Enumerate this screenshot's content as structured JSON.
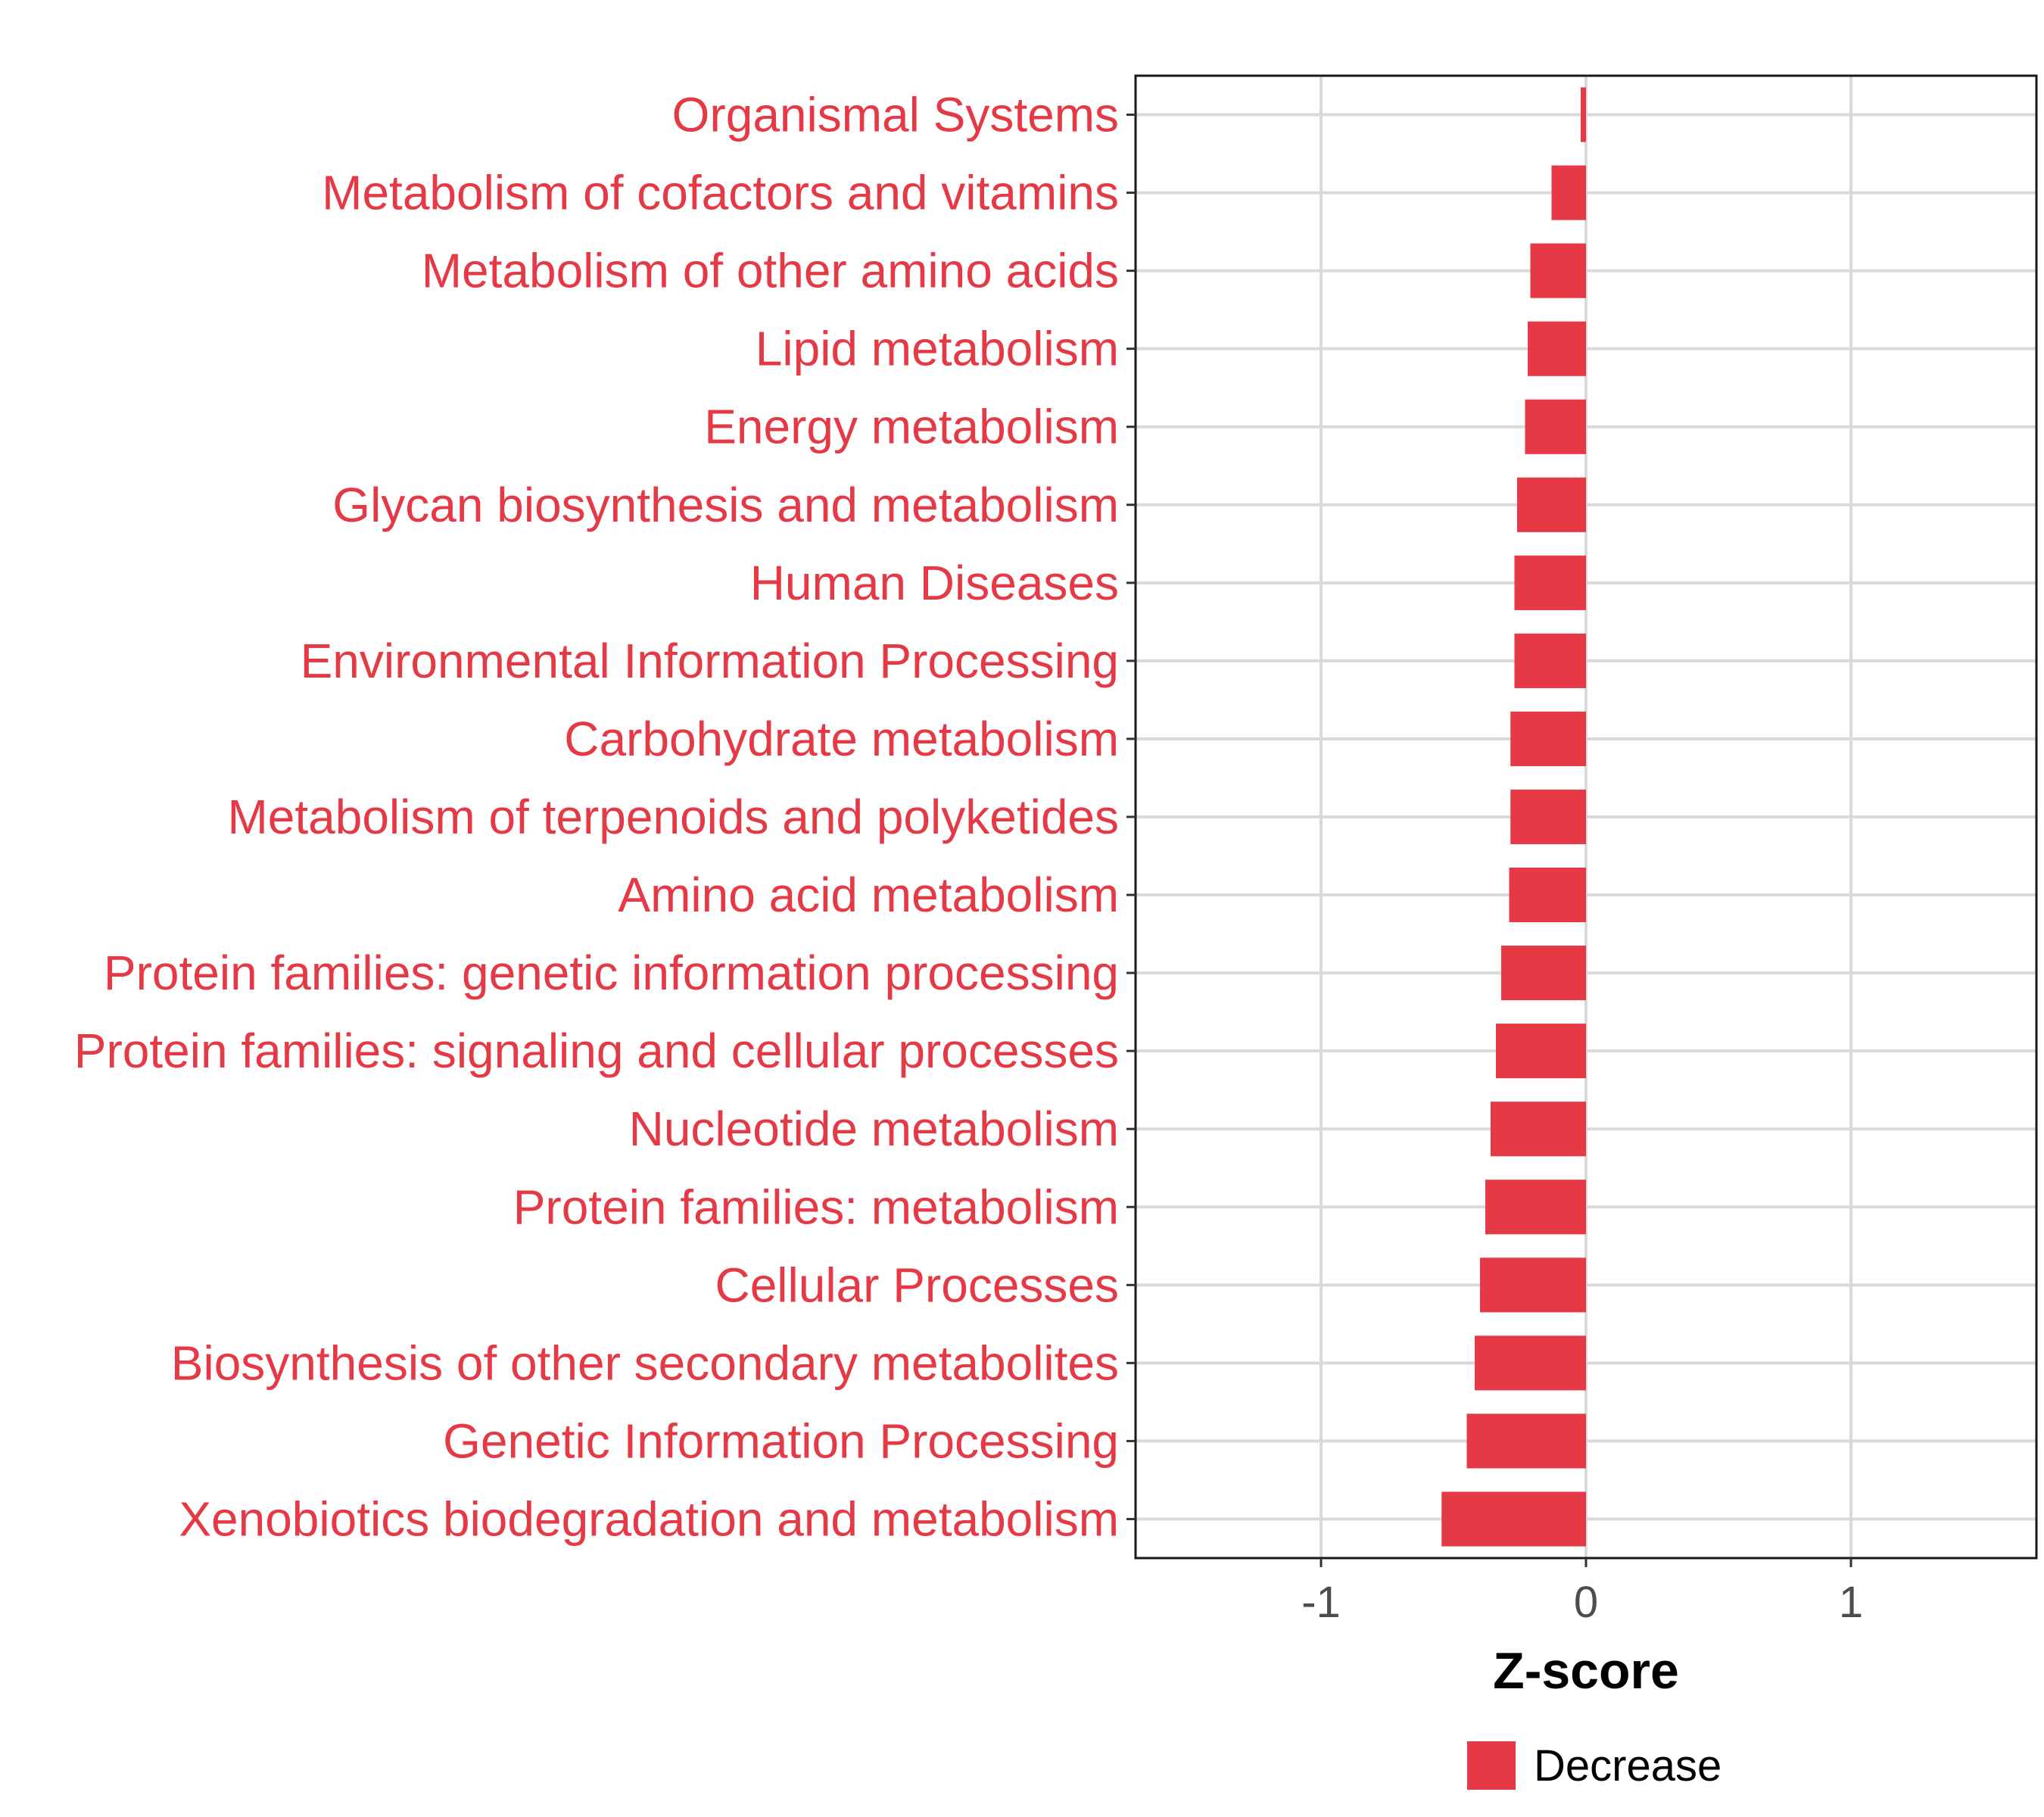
{
  "chart_data": {
    "type": "bar",
    "orientation": "horizontal",
    "categories": [
      "Organismal Systems",
      "Metabolism of cofactors and vitamins",
      "Metabolism of other amino acids",
      "Lipid metabolism",
      "Energy metabolism",
      "Glycan biosynthesis and metabolism",
      "Human Diseases",
      "Environmental Information Processing",
      "Carbohydrate metabolism",
      "Metabolism of terpenoids and polyketides",
      "Amino acid metabolism",
      "Protein families: genetic information processing",
      "Protein families: signaling and cellular processes",
      "Nucleotide metabolism",
      "Protein families: metabolism",
      "Cellular Processes",
      "Biosynthesis of other secondary metabolites",
      "Genetic Information Processing",
      "Xenobiotics biodegradation and metabolism"
    ],
    "values": [
      -0.02,
      -0.13,
      -0.21,
      -0.22,
      -0.23,
      -0.26,
      -0.27,
      -0.27,
      -0.285,
      -0.285,
      -0.29,
      -0.32,
      -0.34,
      -0.36,
      -0.38,
      -0.4,
      -0.42,
      -0.45,
      -0.545
    ],
    "xlabel": "Z-score",
    "ylabel": "",
    "xlim": [
      -1.7,
      1.7
    ],
    "xticks": [
      -1,
      0,
      1
    ],
    "xtick_labels": [
      "-1",
      "0",
      "1"
    ],
    "grid": true,
    "legend": {
      "position": "bottom",
      "entries": [
        {
          "label": "Decrease",
          "color": "#E63946"
        }
      ]
    },
    "bar_color": "#E63946",
    "label_color": "#E63946"
  }
}
